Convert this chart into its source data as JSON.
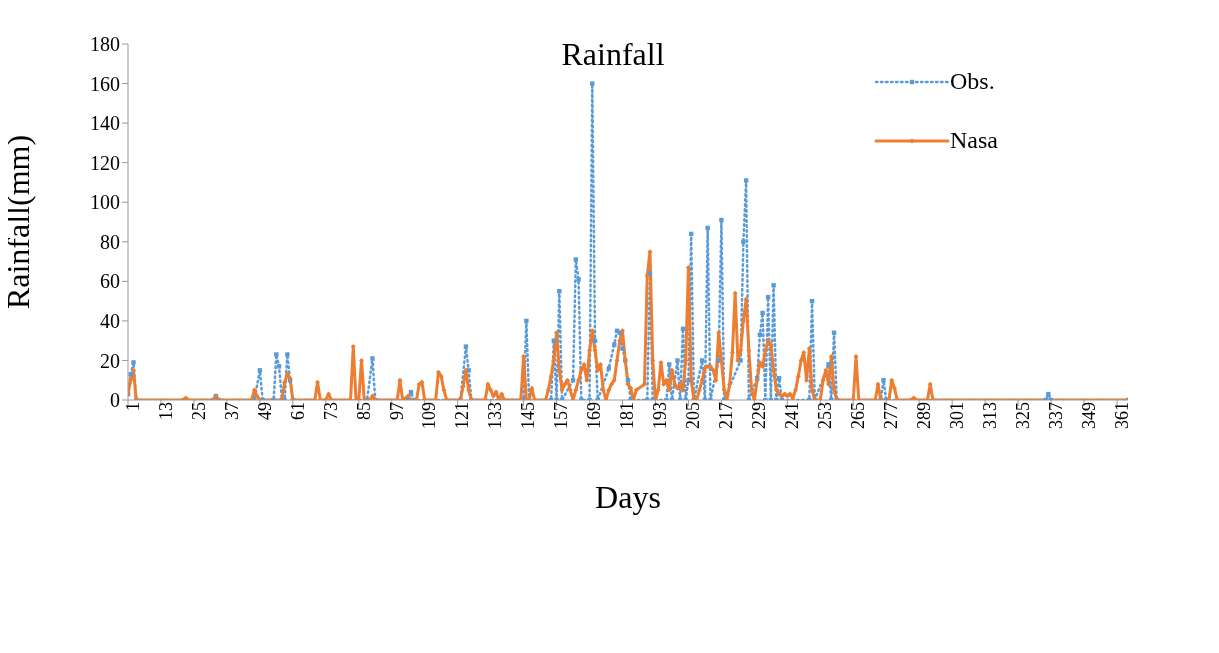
{
  "chart_data": {
    "type": "line",
    "title": "Rainfall",
    "xlabel": "Days",
    "ylabel": "Rainfall(mm)",
    "xlim": [
      1,
      365
    ],
    "xticks": [
      1,
      13,
      25,
      37,
      49,
      61,
      73,
      85,
      97,
      109,
      121,
      133,
      145,
      157,
      169,
      181,
      193,
      205,
      217,
      229,
      241,
      253,
      265,
      277,
      289,
      301,
      313,
      325,
      337,
      349,
      361
    ],
    "ylim": [
      0,
      180
    ],
    "yticks": [
      0,
      20,
      40,
      60,
      80,
      100,
      120,
      140,
      160,
      180
    ],
    "legend": "top right",
    "series": [
      {
        "name": "Obs.",
        "color": "#5b9bd5",
        "line_style": "dotted",
        "marker": "square",
        "x": [
          1,
          2,
          3,
          4,
          32,
          33,
          34,
          47,
          49,
          50,
          54,
          55,
          56,
          57,
          58,
          59,
          60,
          61,
          88,
          90,
          91,
          103,
          104,
          105,
          122,
          124,
          125,
          126,
          145,
          146,
          147,
          155,
          156,
          157,
          158,
          159,
          163,
          164,
          165,
          166,
          169,
          170,
          171,
          172,
          176,
          178,
          179,
          180,
          181,
          182,
          183,
          184,
          190,
          191,
          192,
          197,
          198,
          199,
          201,
          202,
          203,
          204,
          205,
          206,
          207,
          210,
          211,
          212,
          213,
          216,
          217,
          218,
          224,
          225,
          226,
          227,
          230,
          231,
          232,
          233,
          234,
          235,
          236,
          237,
          238,
          239,
          249,
          250,
          251,
          256,
          257,
          258,
          259,
          275,
          276,
          277,
          335,
          336,
          337,
          365
        ],
        "values": [
          3,
          13,
          19,
          0,
          0,
          2,
          0,
          0,
          15,
          0,
          0,
          23,
          17,
          0,
          0,
          23,
          10,
          0,
          0,
          21,
          0,
          0,
          4,
          0,
          0,
          27,
          15,
          0,
          0,
          40,
          0,
          0,
          30,
          0,
          55,
          0,
          10,
          71,
          61,
          0,
          0,
          160,
          30,
          0,
          16,
          28,
          35,
          34,
          26,
          20,
          10,
          0,
          0,
          64,
          0,
          0,
          18,
          0,
          20,
          0,
          36,
          0,
          10,
          84,
          0,
          20,
          0,
          87,
          0,
          20,
          91,
          0,
          20,
          80,
          111,
          0,
          11,
          33,
          44,
          0,
          52,
          0,
          58,
          0,
          11,
          0,
          0,
          50,
          0,
          18,
          0,
          34,
          0,
          0,
          10,
          0,
          0,
          3,
          0,
          0
        ]
      },
      {
        "name": "Nasa",
        "color": "#ed7d31",
        "line_style": "solid",
        "marker": "diamond",
        "x": [
          1,
          2,
          3,
          4,
          21,
          22,
          23,
          32,
          33,
          34,
          46,
          47,
          48,
          49,
          57,
          58,
          59,
          60,
          61,
          69,
          70,
          71,
          73,
          74,
          75,
          82,
          83,
          84,
          85,
          86,
          87,
          89,
          90,
          91,
          99,
          100,
          101,
          103,
          104,
          106,
          107,
          108,
          109,
          113,
          114,
          115,
          116,
          117,
          122,
          123,
          124,
          125,
          126,
          131,
          132,
          133,
          134,
          135,
          136,
          137,
          138,
          144,
          145,
          146,
          147,
          148,
          149,
          153,
          154,
          155,
          156,
          157,
          158,
          159,
          160,
          161,
          162,
          163,
          164,
          165,
          166,
          167,
          168,
          169,
          170,
          171,
          172,
          173,
          174,
          175,
          176,
          177,
          178,
          179,
          180,
          181,
          182,
          183,
          184,
          185,
          186,
          189,
          190,
          191,
          192,
          193,
          194,
          195,
          196,
          197,
          198,
          199,
          200,
          201,
          202,
          203,
          204,
          205,
          206,
          207,
          208,
          209,
          210,
          211,
          212,
          213,
          214,
          215,
          216,
          217,
          218,
          219,
          220,
          221,
          222,
          223,
          224,
          225,
          226,
          227,
          228,
          229,
          230,
          231,
          232,
          233,
          234,
          235,
          236,
          237,
          238,
          239,
          240,
          241,
          242,
          243,
          244,
          245,
          246,
          247,
          248,
          249,
          250,
          251,
          253,
          254,
          255,
          256,
          257,
          258,
          259,
          265,
          266,
          267,
          273,
          274,
          275,
          278,
          279,
          280,
          281,
          286,
          287,
          288,
          292,
          293,
          294,
          365
        ],
        "values": [
          3,
          10,
          15,
          0,
          0,
          1,
          0,
          0,
          2,
          0,
          0,
          5,
          2,
          0,
          0,
          9,
          13,
          11,
          0,
          0,
          9,
          0,
          0,
          3,
          0,
          0,
          27,
          0,
          0,
          20,
          0,
          0,
          2,
          0,
          0,
          10,
          0,
          2,
          0,
          0,
          8,
          9,
          0,
          0,
          14,
          12,
          5,
          0,
          0,
          7,
          15,
          5,
          0,
          0,
          8,
          5,
          2,
          4,
          0,
          3,
          0,
          0,
          22,
          0,
          0,
          6,
          0,
          0,
          5,
          12,
          20,
          34,
          15,
          5,
          8,
          10,
          5,
          0,
          5,
          10,
          15,
          18,
          10,
          25,
          35,
          25,
          15,
          18,
          5,
          0,
          5,
          8,
          10,
          20,
          30,
          35,
          20,
          8,
          6,
          0,
          5,
          8,
          63,
          75,
          20,
          0,
          5,
          19,
          8,
          10,
          5,
          15,
          8,
          6,
          8,
          5,
          20,
          67,
          10,
          0,
          0,
          5,
          10,
          16,
          17,
          17,
          15,
          10,
          34,
          20,
          5,
          0,
          8,
          24,
          54,
          20,
          25,
          40,
          51,
          25,
          5,
          0,
          10,
          19,
          17,
          25,
          30,
          28,
          15,
          5,
          3,
          2,
          3,
          2,
          3,
          1,
          5,
          12,
          20,
          24,
          10,
          26,
          5,
          0,
          0,
          10,
          15,
          8,
          22,
          5,
          0,
          0,
          22,
          0,
          0,
          8,
          0,
          0,
          10,
          6,
          0,
          0,
          1,
          0,
          0,
          8,
          0,
          0
        ]
      }
    ]
  }
}
